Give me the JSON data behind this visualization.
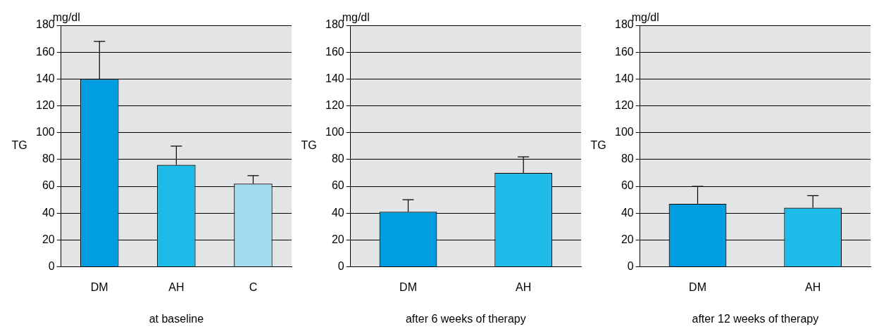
{
  "chart_data": [
    {
      "type": "bar",
      "xlabel": "at baseline",
      "ylabel": "TG",
      "annotations": [
        "mg/dl"
      ],
      "categories": [
        "DM",
        "AH",
        "C"
      ],
      "values": [
        140,
        76,
        62
      ],
      "colors": [
        "#009ee0",
        "#1fbbe8",
        "#a5daf3"
      ],
      "errors": [
        [
          140,
          168
        ],
        [
          76,
          90
        ],
        [
          62,
          68
        ]
      ],
      "ylim": [
        0,
        180
      ],
      "yticks": [
        0,
        20,
        40,
        60,
        80,
        100,
        120,
        140,
        160,
        180
      ],
      "grid": "y",
      "legend": false
    },
    {
      "type": "bar",
      "xlabel": "after 6 weeks of therapy",
      "ylabel": "TG",
      "annotations": [
        "mg/dl"
      ],
      "categories": [
        "DM",
        "AH"
      ],
      "values": [
        41,
        70
      ],
      "colors": [
        "#009ee0",
        "#1fbbe8"
      ],
      "errors": [
        [
          41,
          50
        ],
        [
          70,
          82
        ]
      ],
      "ylim": [
        0,
        180
      ],
      "yticks": [
        0,
        20,
        40,
        60,
        80,
        100,
        120,
        140,
        160,
        180
      ],
      "grid": "y",
      "legend": false
    },
    {
      "type": "bar",
      "xlabel": "after 12 weeks of therapy",
      "ylabel": "TG",
      "annotations": [
        "mg/dl"
      ],
      "categories": [
        "DM",
        "AH"
      ],
      "values": [
        47,
        44
      ],
      "colors": [
        "#009ee0",
        "#1fbbe8"
      ],
      "errors": [
        [
          47,
          60
        ],
        [
          44,
          53
        ]
      ],
      "ylim": [
        0,
        180
      ],
      "yticks": [
        0,
        20,
        40,
        60,
        80,
        100,
        120,
        140,
        160,
        180
      ],
      "grid": "y",
      "legend": false
    }
  ]
}
